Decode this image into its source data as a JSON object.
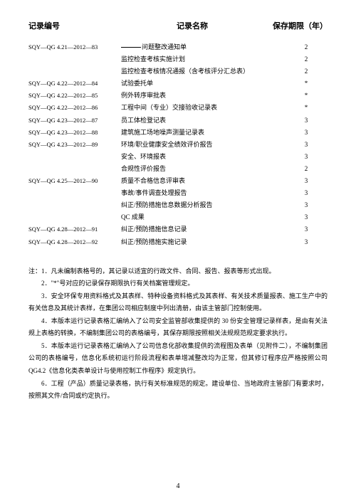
{
  "headers": {
    "code": "记录编号",
    "name": "记录名称",
    "period": "保存期限（年）"
  },
  "rows": [
    {
      "code": "SQY—QG 4.21—2012—83",
      "name": "",
      "name_underline": true,
      "name_suffix": "问题整改通知单",
      "period": "2"
    },
    {
      "code": "",
      "name": "监控检查考核实施计划",
      "period": "2"
    },
    {
      "code": "",
      "name": "监控检查考核情况通报（含考核评分汇总表）",
      "period": "2"
    },
    {
      "code": "SQY—QG 4.22—2012—84",
      "name": "试验委托单",
      "period": "*"
    },
    {
      "code": "SQY—QG 4.22—2012—85",
      "name": "例外转序审批表",
      "period": "*"
    },
    {
      "code": "SQY—QG 4.22—2012—86",
      "name": "工程中间（专业）交接验收记录表",
      "period": "*"
    },
    {
      "code": "SQY—QG 4.23—2012—87",
      "name": "员工体检登记表",
      "period": "3"
    },
    {
      "code": "SQY—QG 4.23—2012—88",
      "name": "建筑施工场地噪声测量记录表",
      "period": "3"
    },
    {
      "code": "SQY—QG 4.23—2012—89",
      "name": "环境/职业健康安全绩效评价报告",
      "period": "3"
    },
    {
      "code": "",
      "name": "安全、环境报表",
      "period": "3"
    },
    {
      "code": "",
      "name": "合规性评价报告",
      "period": "2"
    },
    {
      "code": "SQY—QG 4.25—2012—90",
      "name": "质量不合格信息评审表",
      "period": "3"
    },
    {
      "code": "",
      "name": "事故/事件调查处理报告",
      "period": "3"
    },
    {
      "code": "",
      "name": "纠正/预防措施信息数据分析报告",
      "period": "3"
    },
    {
      "code": "",
      "name": "QC 成果",
      "period": "3"
    },
    {
      "code": "SQY—QG 4.28—2012—91",
      "name": "纠正/预防措施信息记录",
      "period": "3"
    },
    {
      "code": "SQY—QG 4.28—2012—92",
      "name": "纠正/预防措施实施记录",
      "period": "3"
    }
  ],
  "notes": [
    "注：1．凡未编制表格号的，其记录以适宜的行政文件、合同、报告、报表等形式出现。",
    "2．\"*\"号对应的记录保存期限执行有关档案管理规定。",
    "3．安全环保专用资料格式及其表样、特种设备资料格式及其表样、有关技术质量报表、施工生产中的有关信息及其统计表样，在集团公司相应制度中列出清册，由该主管部门控制使用。",
    "4．本版本运行记录表格汇编纳入了公司安全监管部收集提供的 30 份安全管理记录样表，是由有关法规上表格的转换，不编制集团公司的表格编号，其保存期限按照相关法规规范规定要求执行。",
    "5．本版本运行记录表格汇编纳入了公司信息化部收集提供的流程图及表单（见附件二），不编制集团公司的表格编号，信息化系统初运行阶段流程和表单增减整改均为正常，但其修订程序应严格按照公司 QG4.2《信息化类表单设计与使用控制工作程序》规定执行。",
    "6．工程（产品）质量记录表格，执行有关标准规范的规定。建设单位、当地政府主管部门有要求时，按照其文件/合同或约定执行。"
  ],
  "pageNumber": "4"
}
